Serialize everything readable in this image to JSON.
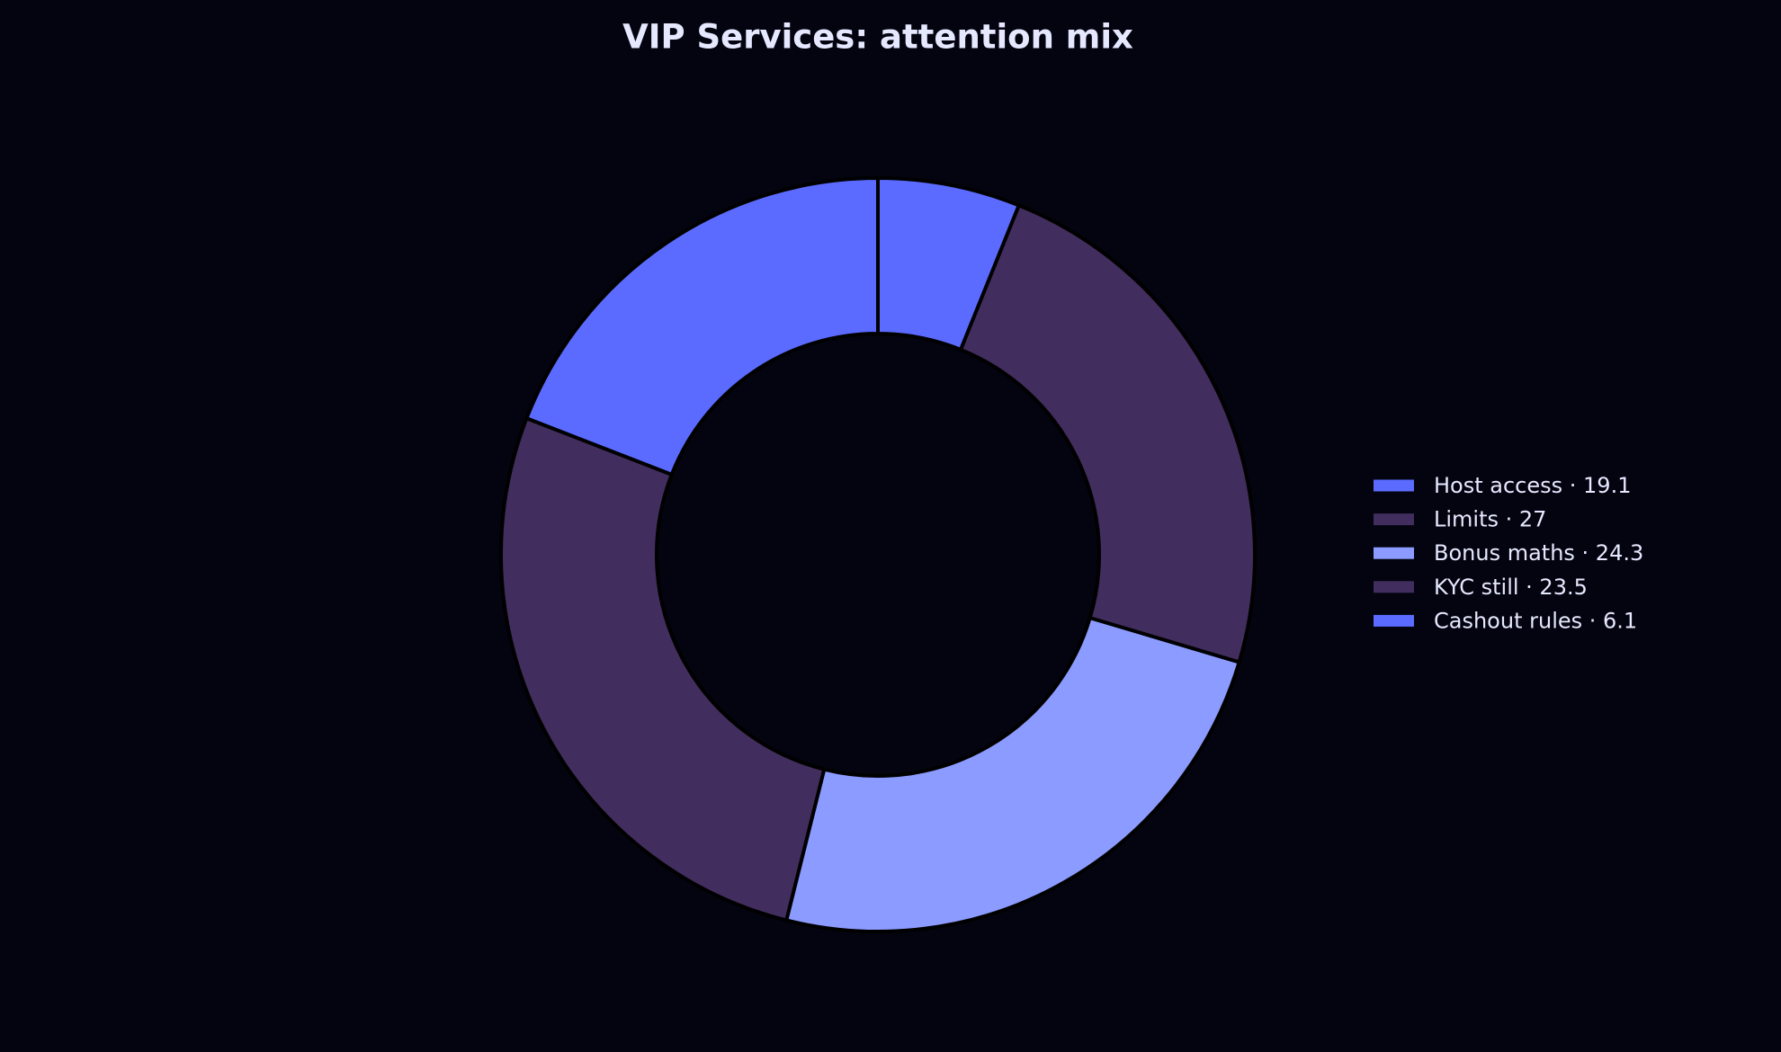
{
  "chart_data": {
    "type": "donut",
    "title": "VIP Services: attention mix",
    "categories": [
      "Host access",
      "Limits",
      "Bonus maths",
      "KYC still",
      "Cashout rules"
    ],
    "labels": [
      "Host access · 19.1",
      "Limits · 27",
      "Bonus maths · 24.3",
      "KYC still · 23.5",
      "Cashout rules · 6.1"
    ],
    "values": [
      19.1,
      27,
      24.3,
      23.5,
      6.1
    ],
    "colors": [
      "#5b6bff",
      "#412d5e",
      "#8c9bff",
      "#412d5e",
      "#5b6bff"
    ],
    "legend": "right"
  }
}
